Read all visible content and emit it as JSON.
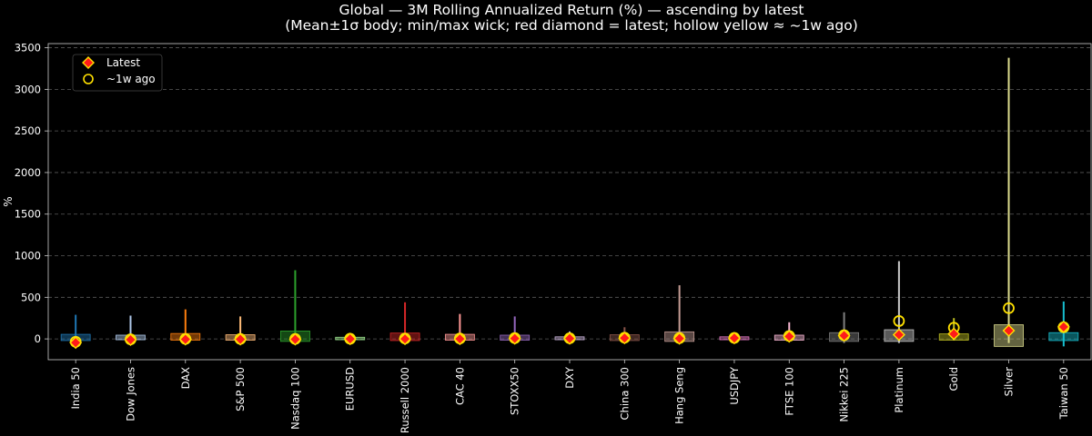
{
  "chart_data": {
    "type": "candlestick-range",
    "title": "Global — 3M Rolling Annualized Return (%) — ascending by latest",
    "subtitle": "(Mean±1σ body; min/max wick; red diamond = latest; hollow yellow ≈ ~1w ago)",
    "xlabel": "",
    "ylabel": "%",
    "ylim": [
      -250,
      3550
    ],
    "yticks": [
      0,
      500,
      1000,
      1500,
      2000,
      2500,
      3000,
      3500
    ],
    "grid": true,
    "legend_position": "top-left",
    "legend": [
      {
        "key": "latest",
        "label": "Latest"
      },
      {
        "key": "week_ago",
        "label": "~1w ago"
      }
    ],
    "series": [
      {
        "name": "India 50",
        "color": "#1f77b4",
        "min": -40,
        "max": 290,
        "body_low": -20,
        "body_high": 55,
        "latest": -45,
        "week_ago": -35
      },
      {
        "name": "Dow Jones",
        "color": "#aec7e8",
        "min": -20,
        "max": 280,
        "body_low": -10,
        "body_high": 45,
        "latest": -10,
        "week_ago": -5
      },
      {
        "name": "DAX",
        "color": "#ff7f0e",
        "min": -20,
        "max": 355,
        "body_low": -15,
        "body_high": 65,
        "latest": -5,
        "week_ago": 0
      },
      {
        "name": "S&P 500",
        "color": "#ffbb78",
        "min": -20,
        "max": 270,
        "body_low": -15,
        "body_high": 50,
        "latest": -5,
        "week_ago": 0
      },
      {
        "name": "Nasdaq 100",
        "color": "#2ca02c",
        "min": -30,
        "max": 825,
        "body_low": -30,
        "body_high": 95,
        "latest": -5,
        "week_ago": 0
      },
      {
        "name": "EURUSD",
        "color": "#98df8a",
        "min": -10,
        "max": 40,
        "body_low": -10,
        "body_high": 20,
        "latest": 0,
        "week_ago": 2
      },
      {
        "name": "Russell 2000",
        "color": "#d62728",
        "min": -30,
        "max": 440,
        "body_low": -20,
        "body_high": 70,
        "latest": 0,
        "week_ago": 5
      },
      {
        "name": "CAC 40",
        "color": "#ff9896",
        "min": -20,
        "max": 300,
        "body_low": -15,
        "body_high": 55,
        "latest": 0,
        "week_ago": 5
      },
      {
        "name": "STOXX50",
        "color": "#9467bd",
        "min": -20,
        "max": 270,
        "body_low": -15,
        "body_high": 45,
        "latest": 5,
        "week_ago": 10
      },
      {
        "name": "DXY",
        "color": "#c5b0d5",
        "min": -10,
        "max": 90,
        "body_low": -10,
        "body_high": 25,
        "latest": 5,
        "week_ago": 8
      },
      {
        "name": "China 300",
        "color": "#8c564b",
        "min": -20,
        "max": 140,
        "body_low": -20,
        "body_high": 50,
        "latest": 10,
        "week_ago": 15
      },
      {
        "name": "Hang Seng",
        "color": "#c49c94",
        "min": -40,
        "max": 645,
        "body_low": -30,
        "body_high": 85,
        "latest": 5,
        "week_ago": 10
      },
      {
        "name": "USDJPY",
        "color": "#e377c2",
        "min": -10,
        "max": 60,
        "body_low": -10,
        "body_high": 25,
        "latest": 10,
        "week_ago": 12
      },
      {
        "name": "FTSE 100",
        "color": "#f7b6d2",
        "min": -30,
        "max": 200,
        "body_low": -15,
        "body_high": 45,
        "latest": 30,
        "week_ago": 35
      },
      {
        "name": "Nikkei 225",
        "color": "#7f7f7f",
        "min": -50,
        "max": 320,
        "body_low": -30,
        "body_high": 75,
        "latest": 40,
        "week_ago": 45
      },
      {
        "name": "Platinum",
        "color": "#c7c7c7",
        "min": -50,
        "max": 935,
        "body_low": -30,
        "body_high": 110,
        "latest": 50,
        "week_ago": 215
      },
      {
        "name": "Gold",
        "color": "#bcbd22",
        "min": -20,
        "max": 250,
        "body_low": -15,
        "body_high": 60,
        "latest": 60,
        "week_ago": 135
      },
      {
        "name": "Silver",
        "color": "#dbdb8d",
        "min": -50,
        "max": 3380,
        "body_low": -90,
        "body_high": 170,
        "latest": 100,
        "week_ago": 370
      },
      {
        "name": "Taiwan 50",
        "color": "#17becf",
        "min": -90,
        "max": 450,
        "body_low": -20,
        "body_high": 75,
        "latest": 145,
        "week_ago": 140
      }
    ]
  }
}
